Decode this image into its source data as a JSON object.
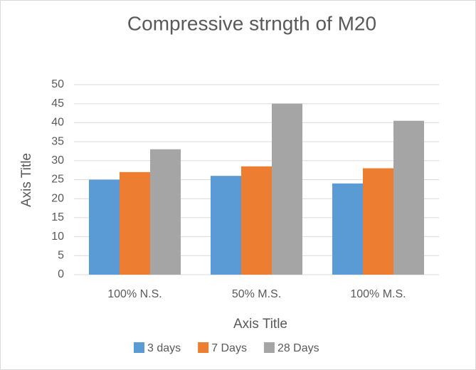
{
  "chart_data": {
    "type": "bar",
    "title": "Compressive strngth of M20",
    "x_label": "Axis Title",
    "y_label": "Axis Title",
    "categories": [
      "100% N.S.",
      "50% M.S.",
      "100% M.S."
    ],
    "series": [
      {
        "name": "3 days",
        "color": "#5b9bd5",
        "values": [
          25,
          26,
          24
        ]
      },
      {
        "name": "7 Days",
        "color": "#ed7d31",
        "values": [
          27,
          28.5,
          28
        ]
      },
      {
        "name": "28 Days",
        "color": "#a5a5a5",
        "values": [
          33,
          45,
          40.5
        ]
      }
    ],
    "ylim": [
      0,
      50
    ],
    "yticks": [
      0,
      5,
      10,
      15,
      20,
      25,
      30,
      35,
      40,
      45,
      50
    ],
    "grid": true,
    "legend": "bottom"
  }
}
